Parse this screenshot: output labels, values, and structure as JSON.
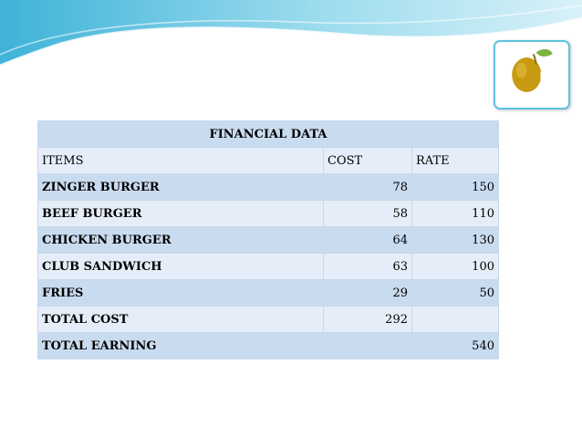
{
  "table": {
    "title": "FINANCIAL DATA",
    "headers": [
      "ITEMS",
      "COST",
      "RATE"
    ],
    "rows": [
      {
        "item": "ZINGER BURGER",
        "cost": "78",
        "rate": "150"
      },
      {
        "item": "BEEF BURGER",
        "cost": "58",
        "rate": "110"
      },
      {
        "item": "CHICKEN BURGER",
        "cost": "64",
        "rate": "130"
      },
      {
        "item": "CLUB SANDWICH",
        "cost": "63",
        "rate": "100"
      },
      {
        "item": "FRIES",
        "cost": "29",
        "rate": "50"
      },
      {
        "item": "TOTAL COST",
        "cost": "292",
        "rate": ""
      },
      {
        "item": "TOTAL EARNING",
        "cost": "",
        "rate": "540"
      }
    ]
  },
  "colors": {
    "band_light": "#e5eef8",
    "band_dark": "#c9dbef",
    "border": "#c7d8ea",
    "wave_blue": "#5cc3de",
    "logo_gold": "#c79a12",
    "logo_green": "#7cb342"
  },
  "icons": {
    "logo": "apple-fork-logo-icon"
  }
}
